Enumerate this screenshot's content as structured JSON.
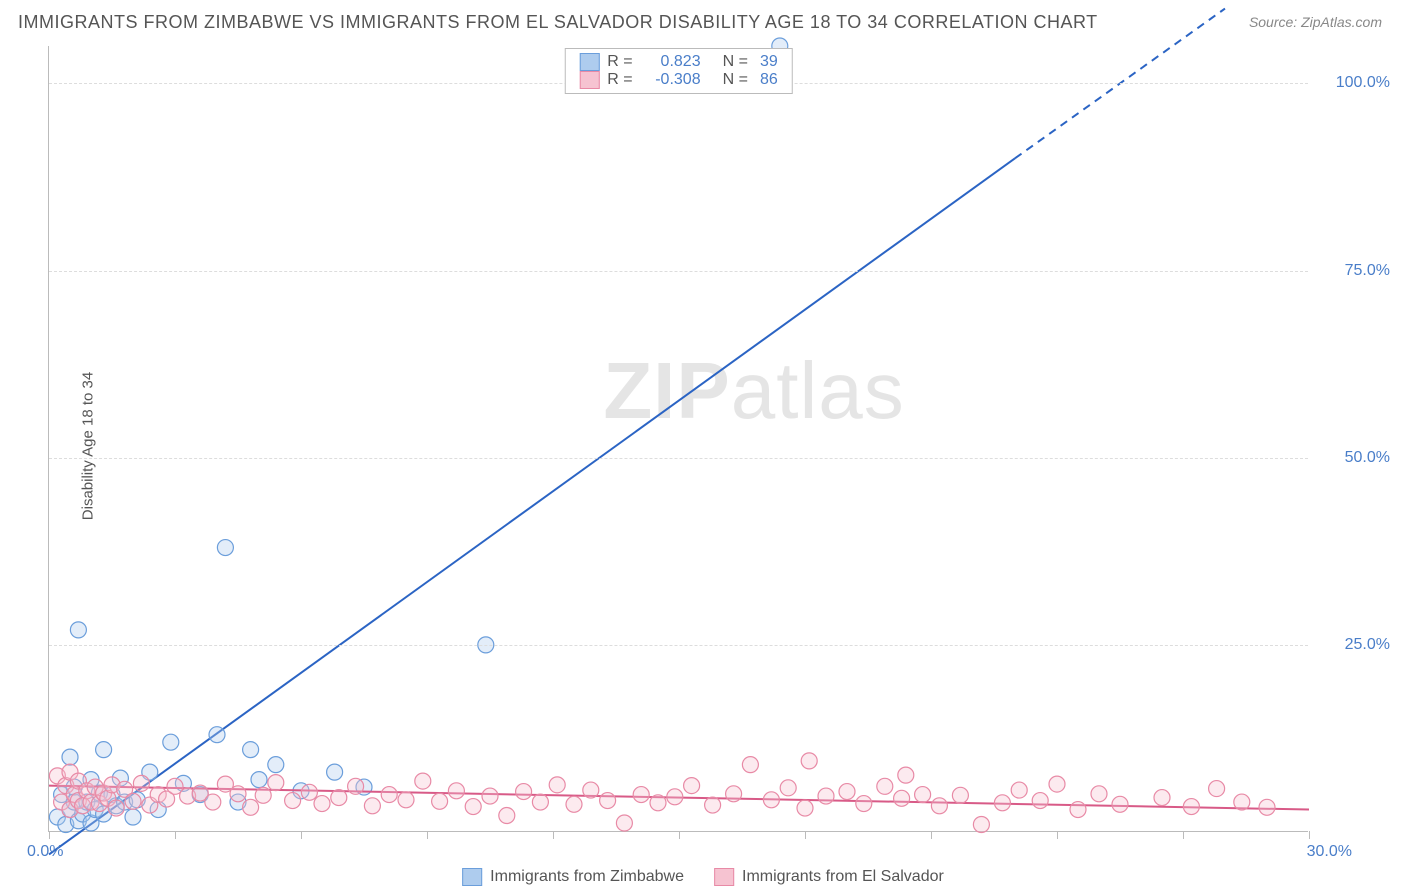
{
  "title": "IMMIGRANTS FROM ZIMBABWE VS IMMIGRANTS FROM EL SALVADOR DISABILITY AGE 18 TO 34 CORRELATION CHART",
  "source": "Source: ZipAtlas.com",
  "ylabel": "Disability Age 18 to 34",
  "watermark_a": "ZIP",
  "watermark_b": "atlas",
  "chart": {
    "type": "scatter",
    "xlim": [
      0,
      30
    ],
    "ylim": [
      0,
      105
    ],
    "xticks": [
      0,
      3,
      6,
      9,
      12,
      15,
      18,
      21,
      24,
      27,
      30
    ],
    "xtick_labels": {
      "first": "0.0%",
      "last": "30.0%"
    },
    "yticks": [
      25,
      50,
      75,
      100
    ],
    "ytick_labels": [
      "25.0%",
      "50.0%",
      "75.0%",
      "100.0%"
    ],
    "background_color": "#ffffff",
    "grid_color": "#dddddd",
    "axis_color": "#bbbbbb",
    "series": [
      {
        "id": "zimbabwe",
        "label": "Immigrants from Zimbabwe",
        "color": "#aeccee",
        "stroke": "#6b9edb",
        "line_color": "#2b64c4",
        "R": "0.823",
        "N": "39",
        "radius": 8,
        "regression": {
          "x1": 0,
          "y1": -3,
          "x2": 23,
          "y2": 90,
          "dash_from_x": 23,
          "x2b": 28,
          "y2b": 110
        },
        "points": [
          [
            0.2,
            2
          ],
          [
            0.3,
            5
          ],
          [
            0.4,
            1
          ],
          [
            0.5,
            3
          ],
          [
            0.5,
            10
          ],
          [
            0.6,
            4
          ],
          [
            0.6,
            6
          ],
          [
            0.7,
            1.5
          ],
          [
            0.7,
            27
          ],
          [
            0.8,
            2.4
          ],
          [
            0.9,
            4
          ],
          [
            1.0,
            7
          ],
          [
            1.0,
            1.2
          ],
          [
            1.1,
            3
          ],
          [
            1.2,
            5.2
          ],
          [
            1.3,
            2.4
          ],
          [
            1.3,
            11
          ],
          [
            1.5,
            5
          ],
          [
            1.6,
            3.5
          ],
          [
            1.7,
            7.2
          ],
          [
            1.8,
            4
          ],
          [
            2.0,
            2
          ],
          [
            2.1,
            4.3
          ],
          [
            2.4,
            8
          ],
          [
            2.6,
            3
          ],
          [
            2.9,
            12
          ],
          [
            3.2,
            6.5
          ],
          [
            3.6,
            5
          ],
          [
            4.0,
            13
          ],
          [
            4.2,
            38
          ],
          [
            4.5,
            4
          ],
          [
            4.8,
            11
          ],
          [
            5.0,
            7
          ],
          [
            5.4,
            9
          ],
          [
            6.0,
            5.5
          ],
          [
            6.8,
            8
          ],
          [
            7.5,
            6
          ],
          [
            10.4,
            25
          ],
          [
            17.4,
            105
          ]
        ]
      },
      {
        "id": "elsalvador",
        "label": "Immigrants from El Salvador",
        "color": "#f6c3d1",
        "stroke": "#e88aa6",
        "line_color": "#d85a87",
        "R": "-0.308",
        "N": "86",
        "radius": 8,
        "regression": {
          "x1": 0,
          "y1": 6.2,
          "x2": 30,
          "y2": 3.0
        },
        "points": [
          [
            0.2,
            7.5
          ],
          [
            0.3,
            4
          ],
          [
            0.4,
            6.2
          ],
          [
            0.5,
            3
          ],
          [
            0.5,
            8
          ],
          [
            0.6,
            5
          ],
          [
            0.7,
            4.2
          ],
          [
            0.7,
            6.8
          ],
          [
            0.8,
            3.5
          ],
          [
            0.9,
            5.5
          ],
          [
            1.0,
            4
          ],
          [
            1.1,
            6
          ],
          [
            1.2,
            3.8
          ],
          [
            1.3,
            5.2
          ],
          [
            1.4,
            4.5
          ],
          [
            1.5,
            6.3
          ],
          [
            1.6,
            3.2
          ],
          [
            1.8,
            5.7
          ],
          [
            2.0,
            4.1
          ],
          [
            2.2,
            6.5
          ],
          [
            2.4,
            3.6
          ],
          [
            2.6,
            5
          ],
          [
            2.8,
            4.4
          ],
          [
            3.0,
            6.1
          ],
          [
            3.3,
            4.8
          ],
          [
            3.6,
            5.2
          ],
          [
            3.9,
            4
          ],
          [
            4.2,
            6.4
          ],
          [
            4.5,
            5.1
          ],
          [
            4.8,
            3.3
          ],
          [
            5.1,
            4.9
          ],
          [
            5.4,
            6.6
          ],
          [
            5.8,
            4.2
          ],
          [
            6.2,
            5.3
          ],
          [
            6.5,
            3.8
          ],
          [
            6.9,
            4.6
          ],
          [
            7.3,
            6.1
          ],
          [
            7.7,
            3.5
          ],
          [
            8.1,
            5
          ],
          [
            8.5,
            4.3
          ],
          [
            8.9,
            6.8
          ],
          [
            9.3,
            4.1
          ],
          [
            9.7,
            5.5
          ],
          [
            10.1,
            3.4
          ],
          [
            10.5,
            4.8
          ],
          [
            10.9,
            2.2
          ],
          [
            11.3,
            5.4
          ],
          [
            11.7,
            4
          ],
          [
            12.1,
            6.3
          ],
          [
            12.5,
            3.7
          ],
          [
            12.9,
            5.6
          ],
          [
            13.3,
            4.2
          ],
          [
            13.7,
            1.2
          ],
          [
            14.1,
            5
          ],
          [
            14.5,
            3.9
          ],
          [
            14.9,
            4.7
          ],
          [
            15.3,
            6.2
          ],
          [
            15.8,
            3.6
          ],
          [
            16.3,
            5.1
          ],
          [
            16.7,
            9
          ],
          [
            17.2,
            4.3
          ],
          [
            17.6,
            5.9
          ],
          [
            18.0,
            3.2
          ],
          [
            18.1,
            9.5
          ],
          [
            18.5,
            4.8
          ],
          [
            19.0,
            5.4
          ],
          [
            19.4,
            3.8
          ],
          [
            19.9,
            6.1
          ],
          [
            20.3,
            4.5
          ],
          [
            20.4,
            7.6
          ],
          [
            20.8,
            5
          ],
          [
            21.2,
            3.5
          ],
          [
            21.7,
            4.9
          ],
          [
            22.2,
            1.0
          ],
          [
            22.7,
            3.9
          ],
          [
            23.1,
            5.6
          ],
          [
            23.6,
            4.2
          ],
          [
            24.0,
            6.4
          ],
          [
            24.5,
            3
          ],
          [
            25.0,
            5.1
          ],
          [
            25.5,
            3.7
          ],
          [
            26.5,
            4.6
          ],
          [
            27.2,
            3.4
          ],
          [
            27.8,
            5.8
          ],
          [
            28.4,
            4
          ],
          [
            29.0,
            3.3
          ]
        ]
      }
    ]
  },
  "legend_bottom": [
    {
      "label": "Immigrants from Zimbabwe",
      "fill": "#aeccee",
      "stroke": "#6b9edb"
    },
    {
      "label": "Immigrants from El Salvador",
      "fill": "#f6c3d1",
      "stroke": "#e88aa6"
    }
  ]
}
